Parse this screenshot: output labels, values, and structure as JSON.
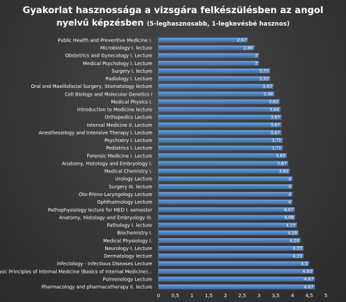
{
  "chart_data": {
    "type": "bar",
    "orientation": "horizontal",
    "title_line1": "Gyakorlat hasznossága a vizsgára felkészülésben az angol",
    "title_line2": "nyelvű képzésben",
    "title_note": "(5-leghasznosabb, 1-legkevésbé hasznos)",
    "categories": [
      "Public Health and Preventive Medicine I.",
      "Microbiology I. lecture",
      "Obstetrics and Gynecology I. Lecture",
      "Medical Psychology I. Lecture",
      "Surgery I. lecture",
      "Radiology I. Lecture",
      "Oral and Maxillofacial Surgery, Stomatology lecture",
      "Cell Biology and Molecular Genetics I",
      "Medical Physics I.",
      "Introduction to Medicine lecture",
      "Orthopedics Lecture",
      "Internal Medicine II. Lecture",
      "Anesthesiology and Intensive Therapy I. Lecture",
      "Psychiatry I. Lecture",
      "Pediatrics I. Lecture",
      "Forensic Medicine I. Lecture",
      "Anatomy, Histology and Embryology I.",
      "Medical Chemistry I.",
      "Urology Lecture",
      "Surgery III. lecture",
      "Oto-Rhino-Laryngology Lecture",
      "Ophthalmology Lecture",
      "Pathophysiology lecture for MED I. semester",
      "Anatomy, Histology and Embryology III.",
      "Pathology I. lecture",
      "Biochemistry I.",
      "Medical Physiology I.",
      "Neurology I. Lecture",
      "Dermatology lecture",
      "Infectology - Infectious Diseases Lecture",
      "Basic Principles of Internal Medicine (Basics of Internal Medicine)...",
      "Pulmonology Lecture",
      "Pharmacology and pharmacotherapy II. lecture"
    ],
    "values": [
      2.67,
      2.86,
      3,
      3,
      3.33,
      3.33,
      3.43,
      3.46,
      3.62,
      3.64,
      3.67,
      3.67,
      3.67,
      3.71,
      3.71,
      3.83,
      3.87,
      3.92,
      4,
      4,
      4,
      4,
      4.07,
      4.08,
      4.13,
      4.18,
      4.24,
      4.33,
      4.33,
      4.5,
      4.63,
      4.67,
      4.67
    ],
    "data_labels": [
      "2,67",
      "2,86",
      "3",
      "3",
      "3,33",
      "3,33",
      "3,43",
      "3,46",
      "3,62",
      "3,64",
      "3,67",
      "3,67",
      "3,67",
      "3,71",
      "3,71",
      "3,83",
      "3,87",
      "3,92",
      "4",
      "4",
      "4",
      "4",
      "4,07",
      "4,08",
      "4,13",
      "4,18",
      "4,24",
      "4,33",
      "4,33",
      "4,5",
      "4,63",
      "4,67",
      "4,67"
    ],
    "xlim": [
      0,
      5
    ],
    "x_ticks": [
      "0",
      "0,5",
      "1",
      "1,5",
      "2",
      "2,5",
      "3",
      "3,5",
      "4",
      "4,5",
      "5"
    ],
    "grid": false,
    "legend": "none",
    "colors": {
      "bar": "#4f81bd",
      "bar_light": "#7aa3d8",
      "bar_dark": "#3a6aa8",
      "text": "#ffffff",
      "background": "#3b3b3b"
    }
  }
}
